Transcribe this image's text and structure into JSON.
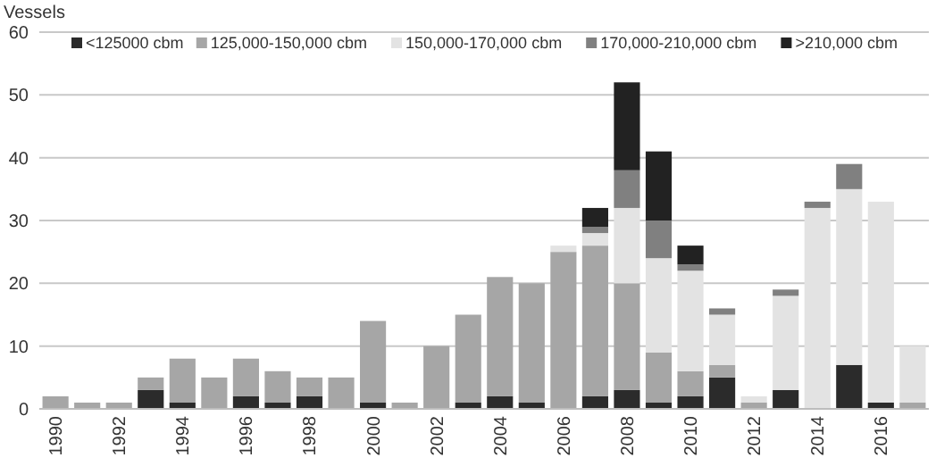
{
  "chart_data": {
    "type": "bar",
    "stacked": true,
    "ylabel": "Vessels",
    "categories": [
      "1990",
      null,
      "1992",
      null,
      "1994",
      null,
      "1996",
      null,
      "1998",
      null,
      "2000",
      null,
      "2002",
      null,
      "2004",
      null,
      "2006",
      null,
      "2008",
      null,
      "2010",
      null,
      "2012",
      null,
      "2014",
      null,
      "2016",
      null
    ],
    "series": [
      {
        "name": "<125000 cbm",
        "color": "#2b2b2b",
        "values": [
          0,
          0,
          0,
          3,
          1,
          0,
          2,
          1,
          2,
          0,
          1,
          0,
          0,
          1,
          2,
          1,
          0,
          2,
          3,
          1,
          2,
          5,
          0,
          3,
          0,
          7,
          1,
          0
        ]
      },
      {
        "name": "125,000-150,000 cbm",
        "color": "#a6a6a6",
        "values": [
          2,
          1,
          1,
          2,
          7,
          5,
          6,
          5,
          3,
          5,
          13,
          1,
          10,
          14,
          19,
          19,
          25,
          24,
          17,
          8,
          4,
          2,
          1,
          0,
          0,
          0,
          0,
          1
        ]
      },
      {
        "name": "150,000-170,000 cbm",
        "color": "#e3e3e3",
        "values": [
          0,
          0,
          0,
          0,
          0,
          0,
          0,
          0,
          0,
          0,
          0,
          0,
          0,
          0,
          0,
          0,
          1,
          2,
          12,
          15,
          16,
          8,
          1,
          15,
          32,
          28,
          32,
          9
        ]
      },
      {
        "name": "170,000-210,000 cbm",
        "color": "#808080",
        "values": [
          0,
          0,
          0,
          0,
          0,
          0,
          0,
          0,
          0,
          0,
          0,
          0,
          0,
          0,
          0,
          0,
          0,
          1,
          6,
          6,
          1,
          1,
          0,
          1,
          1,
          4,
          0,
          0
        ]
      },
      {
        "name": ">210,000 cbm",
        "color": "#222222",
        "values": [
          0,
          0,
          0,
          0,
          0,
          0,
          0,
          0,
          0,
          0,
          0,
          0,
          0,
          0,
          0,
          0,
          0,
          3,
          14,
          11,
          3,
          0,
          0,
          0,
          0,
          0,
          0,
          0
        ]
      }
    ],
    "ylim": [
      0,
      60
    ],
    "yticks": [
      0,
      10,
      20,
      30,
      40,
      50,
      60
    ],
    "grid": "y",
    "legend": "top"
  }
}
